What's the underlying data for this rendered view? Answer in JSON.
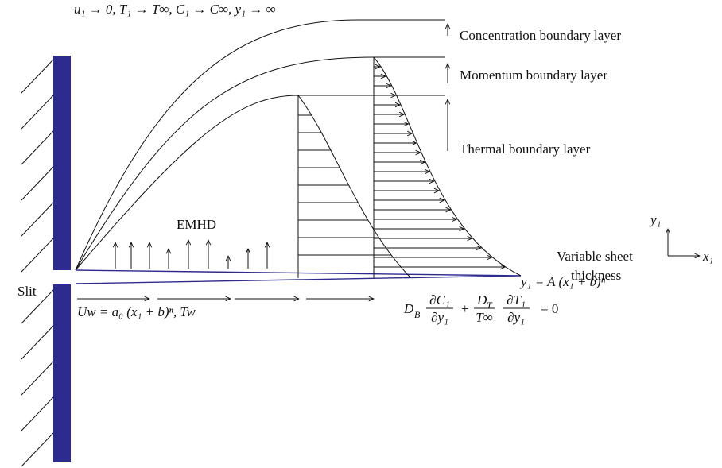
{
  "top_condition": "u₁ → 0, T₁ → T∞, C₁ → C∞, y₁ → ∞",
  "layers": [
    "Concentration boundary layer",
    "Momentum boundary layer",
    "Thermal boundary layer"
  ],
  "emhd": "EMHD",
  "sheet_label": [
    "Variable sheet",
    "thickness"
  ],
  "slit": "Slit",
  "sheet_equation": "y₁ = A (x₁ + b)ⁿ",
  "wall_velocity": "Uw = a₀ (x₁ + b)ⁿ, Tw",
  "boundary_condition": {
    "d1": "D",
    "d1_sub": "B",
    "frac1_num": "∂C₁",
    "frac1_den": "∂y₁",
    "plus": "+",
    "d2": "D",
    "d2_sub": "T",
    "d2_den": "T∞",
    "frac2_num": "∂T₁",
    "frac2_den": "∂y₁",
    "rhs": "= 0"
  },
  "axes": {
    "y": "y₁",
    "x": "x₁"
  }
}
